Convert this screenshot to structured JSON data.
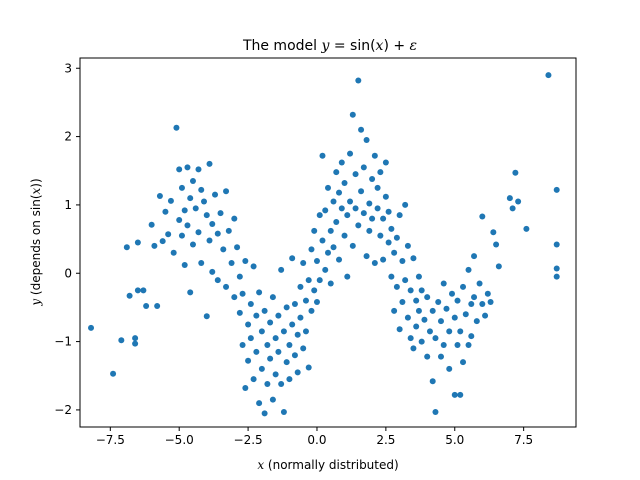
{
  "chart_data": {
    "type": "scatter",
    "title": {
      "prefix": "The model ",
      "math_y": "y",
      "math_eq": " = sin(",
      "math_x": "x",
      "math_plus": ") + ",
      "math_eps": "ε"
    },
    "xlabel": {
      "var": "x",
      "rest": " (normally distributed)"
    },
    "ylabel": {
      "var": "y",
      "rest": " (depends on sin(",
      "inner": "x",
      "close": "))"
    },
    "xlim": [
      -8.6,
      9.4
    ],
    "ylim": [
      -2.25,
      3.15
    ],
    "xticks": [
      {
        "value": -7.5,
        "label": "−7.5"
      },
      {
        "value": -5.0,
        "label": "−5.0"
      },
      {
        "value": -2.5,
        "label": "−2.5"
      },
      {
        "value": 0.0,
        "label": "0.0"
      },
      {
        "value": 2.5,
        "label": "2.5"
      },
      {
        "value": 5.0,
        "label": "5.0"
      },
      {
        "value": 7.5,
        "label": "7.5"
      }
    ],
    "yticks": [
      {
        "value": -2,
        "label": "−2"
      },
      {
        "value": -1,
        "label": "−1"
      },
      {
        "value": 0,
        "label": "0"
      },
      {
        "value": 1,
        "label": "1"
      },
      {
        "value": 2,
        "label": "2"
      },
      {
        "value": 3,
        "label": "3"
      }
    ],
    "grid": false,
    "marker_color": "#1f77b4",
    "points": [
      {
        "x": -8.2,
        "y": -0.8
      },
      {
        "x": -7.4,
        "y": -1.47
      },
      {
        "x": -7.1,
        "y": -0.98
      },
      {
        "x": -6.9,
        "y": 0.38
      },
      {
        "x": -6.8,
        "y": -0.33
      },
      {
        "x": -6.6,
        "y": -0.95
      },
      {
        "x": -6.6,
        "y": -1.03
      },
      {
        "x": -6.5,
        "y": 0.45
      },
      {
        "x": -6.5,
        "y": -0.25
      },
      {
        "x": -6.3,
        "y": -0.25
      },
      {
        "x": -6.2,
        "y": -0.48
      },
      {
        "x": -6.0,
        "y": 0.71
      },
      {
        "x": -5.9,
        "y": 0.4
      },
      {
        "x": -5.8,
        "y": -0.48
      },
      {
        "x": -5.7,
        "y": 1.13
      },
      {
        "x": -5.6,
        "y": 0.47
      },
      {
        "x": -5.5,
        "y": 0.9
      },
      {
        "x": -5.4,
        "y": 0.57
      },
      {
        "x": -5.3,
        "y": 1.06
      },
      {
        "x": -5.2,
        "y": 0.3
      },
      {
        "x": -5.1,
        "y": 2.13
      },
      {
        "x": -5.0,
        "y": 1.52
      },
      {
        "x": -5.0,
        "y": 0.78
      },
      {
        "x": -4.9,
        "y": 0.55
      },
      {
        "x": -4.9,
        "y": 1.25
      },
      {
        "x": -4.8,
        "y": 0.92
      },
      {
        "x": -4.8,
        "y": 0.12
      },
      {
        "x": -4.7,
        "y": 1.55
      },
      {
        "x": -4.7,
        "y": 0.7
      },
      {
        "x": -4.6,
        "y": 1.1
      },
      {
        "x": -4.6,
        "y": -0.28
      },
      {
        "x": -4.5,
        "y": 1.35
      },
      {
        "x": -4.5,
        "y": 0.42
      },
      {
        "x": -4.4,
        "y": 0.95
      },
      {
        "x": -4.3,
        "y": 1.52
      },
      {
        "x": -4.3,
        "y": 0.6
      },
      {
        "x": -4.2,
        "y": 1.22
      },
      {
        "x": -4.2,
        "y": 0.15
      },
      {
        "x": -4.1,
        "y": 1.05
      },
      {
        "x": -4.0,
        "y": -0.63
      },
      {
        "x": -4.0,
        "y": 0.85
      },
      {
        "x": -3.9,
        "y": 1.6
      },
      {
        "x": -3.9,
        "y": 0.48
      },
      {
        "x": -3.8,
        "y": 0.72
      },
      {
        "x": -3.8,
        "y": 0.02
      },
      {
        "x": -3.7,
        "y": 1.15
      },
      {
        "x": -3.6,
        "y": 0.58
      },
      {
        "x": -3.6,
        "y": -0.1
      },
      {
        "x": -3.5,
        "y": 0.88
      },
      {
        "x": -3.4,
        "y": 0.35
      },
      {
        "x": -3.3,
        "y": 1.2
      },
      {
        "x": -3.3,
        "y": -0.2
      },
      {
        "x": -3.2,
        "y": 0.62
      },
      {
        "x": -3.1,
        "y": 0.15
      },
      {
        "x": -3.0,
        "y": 0.8
      },
      {
        "x": -3.0,
        "y": -0.35
      },
      {
        "x": -2.9,
        "y": 0.38
      },
      {
        "x": -2.8,
        "y": -0.05
      },
      {
        "x": -2.8,
        "y": -0.58
      },
      {
        "x": -2.7,
        "y": -0.3
      },
      {
        "x": -2.7,
        "y": -1.05
      },
      {
        "x": -2.6,
        "y": 0.18
      },
      {
        "x": -2.6,
        "y": -1.68
      },
      {
        "x": -2.5,
        "y": -0.75
      },
      {
        "x": -2.5,
        "y": -1.28
      },
      {
        "x": -2.4,
        "y": -0.45
      },
      {
        "x": -2.4,
        "y": -0.95
      },
      {
        "x": -2.3,
        "y": 0.1
      },
      {
        "x": -2.3,
        "y": -1.55
      },
      {
        "x": -2.2,
        "y": -0.62
      },
      {
        "x": -2.2,
        "y": -1.15
      },
      {
        "x": -2.1,
        "y": -1.9
      },
      {
        "x": -2.1,
        "y": -0.28
      },
      {
        "x": -2.0,
        "y": -0.85
      },
      {
        "x": -2.0,
        "y": -1.4
      },
      {
        "x": -1.9,
        "y": -2.05
      },
      {
        "x": -1.9,
        "y": -0.55
      },
      {
        "x": -1.8,
        "y": -1.05
      },
      {
        "x": -1.8,
        "y": -1.62
      },
      {
        "x": -1.7,
        "y": -0.72
      },
      {
        "x": -1.7,
        "y": -1.25
      },
      {
        "x": -1.6,
        "y": -0.35
      },
      {
        "x": -1.6,
        "y": -1.85
      },
      {
        "x": -1.5,
        "y": -0.95
      },
      {
        "x": -1.5,
        "y": -1.48
      },
      {
        "x": -1.4,
        "y": -0.62
      },
      {
        "x": -1.4,
        "y": -1.15
      },
      {
        "x": -1.3,
        "y": 0.05
      },
      {
        "x": -1.3,
        "y": -1.62
      },
      {
        "x": -1.2,
        "y": -0.85
      },
      {
        "x": -1.2,
        "y": -2.03
      },
      {
        "x": -1.1,
        "y": -1.3
      },
      {
        "x": -1.1,
        "y": -0.5
      },
      {
        "x": -1.0,
        "y": -1.05
      },
      {
        "x": -1.0,
        "y": -1.55
      },
      {
        "x": -0.9,
        "y": -0.75
      },
      {
        "x": -0.9,
        "y": 0.22
      },
      {
        "x": -0.8,
        "y": -1.2
      },
      {
        "x": -0.8,
        "y": -0.45
      },
      {
        "x": -0.7,
        "y": -0.9
      },
      {
        "x": -0.7,
        "y": -1.45
      },
      {
        "x": -0.6,
        "y": -0.2
      },
      {
        "x": -0.6,
        "y": -0.65
      },
      {
        "x": -0.5,
        "y": -1.1
      },
      {
        "x": -0.5,
        "y": 0.15
      },
      {
        "x": -0.4,
        "y": -0.4
      },
      {
        "x": -0.4,
        "y": -0.85
      },
      {
        "x": -0.3,
        "y": -0.1
      },
      {
        "x": -0.3,
        "y": -1.38
      },
      {
        "x": -0.2,
        "y": 0.35
      },
      {
        "x": -0.2,
        "y": -0.55
      },
      {
        "x": -0.1,
        "y": -0.25
      },
      {
        "x": -0.1,
        "y": 0.62
      },
      {
        "x": 0.0,
        "y": -0.42
      },
      {
        "x": 0.0,
        "y": 0.18
      },
      {
        "x": 0.1,
        "y": 0.85
      },
      {
        "x": 0.1,
        "y": -0.1
      },
      {
        "x": 0.2,
        "y": 0.48
      },
      {
        "x": 0.2,
        "y": 1.72
      },
      {
        "x": 0.3,
        "y": 0.05
      },
      {
        "x": 0.3,
        "y": 0.92
      },
      {
        "x": 0.4,
        "y": 0.3
      },
      {
        "x": 0.4,
        "y": 1.25
      },
      {
        "x": 0.5,
        "y": 0.62
      },
      {
        "x": 0.5,
        "y": -0.15
      },
      {
        "x": 0.6,
        "y": 1.05
      },
      {
        "x": 0.6,
        "y": 0.38
      },
      {
        "x": 0.7,
        "y": 1.48
      },
      {
        "x": 0.7,
        "y": 0.75
      },
      {
        "x": 0.8,
        "y": 0.2
      },
      {
        "x": 0.8,
        "y": 1.18
      },
      {
        "x": 0.9,
        "y": 0.95
      },
      {
        "x": 0.9,
        "y": 1.62
      },
      {
        "x": 1.0,
        "y": 0.55
      },
      {
        "x": 1.0,
        "y": 1.32
      },
      {
        "x": 1.1,
        "y": 0.85
      },
      {
        "x": 1.1,
        "y": -0.05
      },
      {
        "x": 1.2,
        "y": 1.75
      },
      {
        "x": 1.2,
        "y": 1.05
      },
      {
        "x": 1.3,
        "y": 2.32
      },
      {
        "x": 1.3,
        "y": 0.4
      },
      {
        "x": 1.4,
        "y": 1.45
      },
      {
        "x": 1.4,
        "y": 0.95
      },
      {
        "x": 1.5,
        "y": 2.82
      },
      {
        "x": 1.5,
        "y": 0.7
      },
      {
        "x": 1.6,
        "y": 1.2
      },
      {
        "x": 1.6,
        "y": 2.1
      },
      {
        "x": 1.7,
        "y": 0.88
      },
      {
        "x": 1.7,
        "y": 1.55
      },
      {
        "x": 1.8,
        "y": 0.25
      },
      {
        "x": 1.8,
        "y": 1.95
      },
      {
        "x": 1.9,
        "y": 1.02
      },
      {
        "x": 1.9,
        "y": 0.62
      },
      {
        "x": 2.0,
        "y": 1.38
      },
      {
        "x": 2.0,
        "y": 0.8
      },
      {
        "x": 2.1,
        "y": 1.72
      },
      {
        "x": 2.1,
        "y": 0.15
      },
      {
        "x": 2.2,
        "y": 0.95
      },
      {
        "x": 2.2,
        "y": 1.25
      },
      {
        "x": 2.3,
        "y": 0.55
      },
      {
        "x": 2.3,
        "y": 1.48
      },
      {
        "x": 2.4,
        "y": 0.8
      },
      {
        "x": 2.4,
        "y": 0.2
      },
      {
        "x": 2.5,
        "y": 1.12
      },
      {
        "x": 2.5,
        "y": 1.62
      },
      {
        "x": 2.6,
        "y": 0.45
      },
      {
        "x": 2.6,
        "y": 0.9
      },
      {
        "x": 2.7,
        "y": -0.05
      },
      {
        "x": 2.7,
        "y": 0.65
      },
      {
        "x": 2.8,
        "y": 0.3
      },
      {
        "x": 2.8,
        "y": -0.55
      },
      {
        "x": 2.9,
        "y": 0.52
      },
      {
        "x": 2.9,
        "y": -0.2
      },
      {
        "x": 3.0,
        "y": 0.85
      },
      {
        "x": 3.0,
        "y": -0.82
      },
      {
        "x": 3.1,
        "y": 0.18
      },
      {
        "x": 3.1,
        "y": -0.42
      },
      {
        "x": 3.2,
        "y": 1.0
      },
      {
        "x": 3.2,
        "y": -0.1
      },
      {
        "x": 3.3,
        "y": -0.65
      },
      {
        "x": 3.3,
        "y": 0.4
      },
      {
        "x": 3.4,
        "y": -0.95
      },
      {
        "x": 3.4,
        "y": -0.25
      },
      {
        "x": 3.5,
        "y": 0.22
      },
      {
        "x": 3.5,
        "y": -1.1
      },
      {
        "x": 3.6,
        "y": -0.4
      },
      {
        "x": 3.6,
        "y": -0.78
      },
      {
        "x": 3.7,
        "y": -0.05
      },
      {
        "x": 3.7,
        "y": -0.55
      },
      {
        "x": 3.8,
        "y": -1.0
      },
      {
        "x": 3.8,
        "y": -0.25
      },
      {
        "x": 3.9,
        "y": -0.68
      },
      {
        "x": 4.0,
        "y": -1.22
      },
      {
        "x": 4.0,
        "y": -0.35
      },
      {
        "x": 4.1,
        "y": -0.85
      },
      {
        "x": 4.2,
        "y": -1.58
      },
      {
        "x": 4.2,
        "y": -0.55
      },
      {
        "x": 4.3,
        "y": -2.03
      },
      {
        "x": 4.3,
        "y": -0.95
      },
      {
        "x": 4.4,
        "y": -0.42
      },
      {
        "x": 4.5,
        "y": -1.22
      },
      {
        "x": 4.5,
        "y": -0.7
      },
      {
        "x": 4.6,
        "y": -0.15
      },
      {
        "x": 4.6,
        "y": -1.05
      },
      {
        "x": 4.7,
        "y": -0.52
      },
      {
        "x": 4.8,
        "y": -0.85
      },
      {
        "x": 4.8,
        "y": -1.4
      },
      {
        "x": 4.9,
        "y": -0.3
      },
      {
        "x": 5.0,
        "y": -0.65
      },
      {
        "x": 5.0,
        "y": -1.78
      },
      {
        "x": 5.1,
        "y": -1.05
      },
      {
        "x": 5.1,
        "y": -0.4
      },
      {
        "x": 5.2,
        "y": -0.85
      },
      {
        "x": 5.2,
        "y": -1.78
      },
      {
        "x": 5.3,
        "y": -0.2
      },
      {
        "x": 5.3,
        "y": -1.3
      },
      {
        "x": 5.4,
        "y": -0.6
      },
      {
        "x": 5.5,
        "y": -1.05
      },
      {
        "x": 5.5,
        "y": 0.05
      },
      {
        "x": 5.6,
        "y": -0.45
      },
      {
        "x": 5.6,
        "y": -0.92
      },
      {
        "x": 5.7,
        "y": 0.25
      },
      {
        "x": 5.7,
        "y": -0.35
      },
      {
        "x": 5.8,
        "y": -0.7
      },
      {
        "x": 5.9,
        "y": -0.15
      },
      {
        "x": 6.0,
        "y": 0.83
      },
      {
        "x": 6.0,
        "y": -0.45
      },
      {
        "x": 6.1,
        "y": -0.62
      },
      {
        "x": 6.2,
        "y": -0.3
      },
      {
        "x": 6.3,
        "y": -0.42
      },
      {
        "x": 6.4,
        "y": 0.6
      },
      {
        "x": 6.5,
        "y": 0.42
      },
      {
        "x": 6.6,
        "y": 0.1
      },
      {
        "x": 7.0,
        "y": 1.1
      },
      {
        "x": 7.1,
        "y": 0.95
      },
      {
        "x": 7.2,
        "y": 1.47
      },
      {
        "x": 7.3,
        "y": 1.05
      },
      {
        "x": 7.6,
        "y": 0.65
      },
      {
        "x": 8.4,
        "y": 2.9
      },
      {
        "x": 8.7,
        "y": 1.22
      },
      {
        "x": 8.7,
        "y": 0.42
      },
      {
        "x": 8.7,
        "y": 0.07
      },
      {
        "x": 8.7,
        "y": -0.05
      }
    ]
  }
}
